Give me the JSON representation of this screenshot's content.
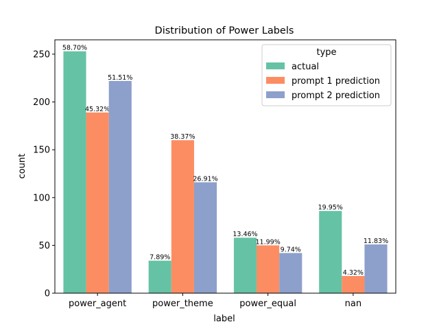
{
  "chart_data": {
    "type": "bar",
    "title": "Distribution of Power Labels",
    "xlabel": "label",
    "ylabel": "count",
    "categories": [
      "power_agent",
      "power_theme",
      "power_equal",
      "nan"
    ],
    "ylim": [
      0,
      265
    ],
    "yticks": [
      0,
      50,
      100,
      150,
      200,
      250
    ],
    "grid": false,
    "legend": {
      "title": "type",
      "placement": "top-right"
    },
    "series": [
      {
        "name": "actual",
        "color": "#66c2a5",
        "values": [
          253,
          34,
          58,
          86
        ],
        "labels": [
          "58.70%",
          "7.89%",
          "13.46%",
          "19.95%"
        ]
      },
      {
        "name": "prompt 1 prediction",
        "color": "#fc8d62",
        "values": [
          189,
          160,
          50,
          18
        ],
        "labels": [
          "45.32%",
          "38.37%",
          "11.99%",
          "4.32%"
        ]
      },
      {
        "name": "prompt 2 prediction",
        "color": "#8da0cb",
        "values": [
          222,
          116,
          42,
          51
        ],
        "labels": [
          "51.51%",
          "26.91%",
          "9.74%",
          "11.83%"
        ]
      }
    ]
  }
}
